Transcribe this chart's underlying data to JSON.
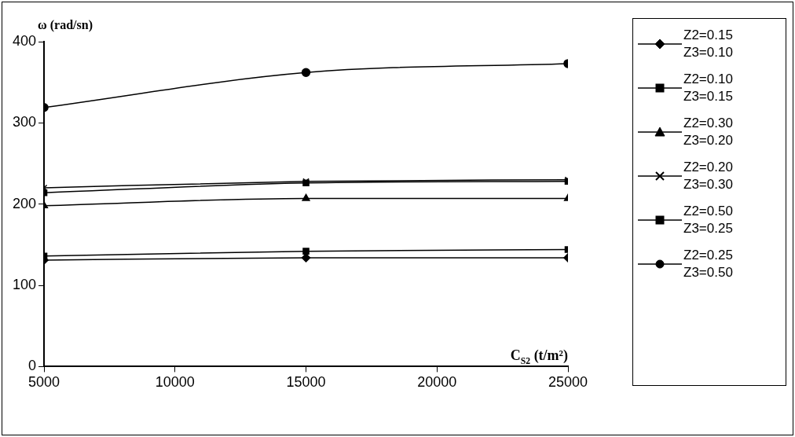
{
  "chart_data": {
    "type": "line",
    "ylabel": "ω (rad/sn)",
    "xlabel": "C$_{S2}$ (t/m²)",
    "x": [
      5000,
      15000,
      25000
    ],
    "xlim": [
      5000,
      25000
    ],
    "xticks": [
      5000,
      10000,
      15000,
      20000,
      25000
    ],
    "ylim": [
      0,
      400
    ],
    "yticks": [
      0,
      100,
      200,
      300,
      400
    ],
    "grid": false,
    "legend": "right",
    "line_style": "solid",
    "series": [
      {
        "name": "Z2=0.15 Z3=0.10",
        "color": "#000000",
        "marker": "diamond",
        "values": [
          131,
          134,
          134
        ]
      },
      {
        "name": "Z2=0.10 Z3=0.15",
        "color": "#000000",
        "marker": "square",
        "values": [
          136,
          142,
          144
        ]
      },
      {
        "name": "Z2=0.30 Z3=0.20",
        "color": "#000000",
        "marker": "triangle",
        "values": [
          198,
          207,
          207
        ]
      },
      {
        "name": "Z2=0.20 Z3=0.30",
        "color": "#000000",
        "marker": "cross",
        "values": [
          220,
          228,
          230
        ]
      },
      {
        "name": "Z2=0.50 Z3=0.25",
        "color": "#000000",
        "marker": "square",
        "values": [
          214,
          226,
          228
        ]
      },
      {
        "name": "Z2=0.25 Z3=0.50",
        "color": "#000000",
        "marker": "circle",
        "values": [
          319,
          362,
          373
        ]
      }
    ]
  }
}
